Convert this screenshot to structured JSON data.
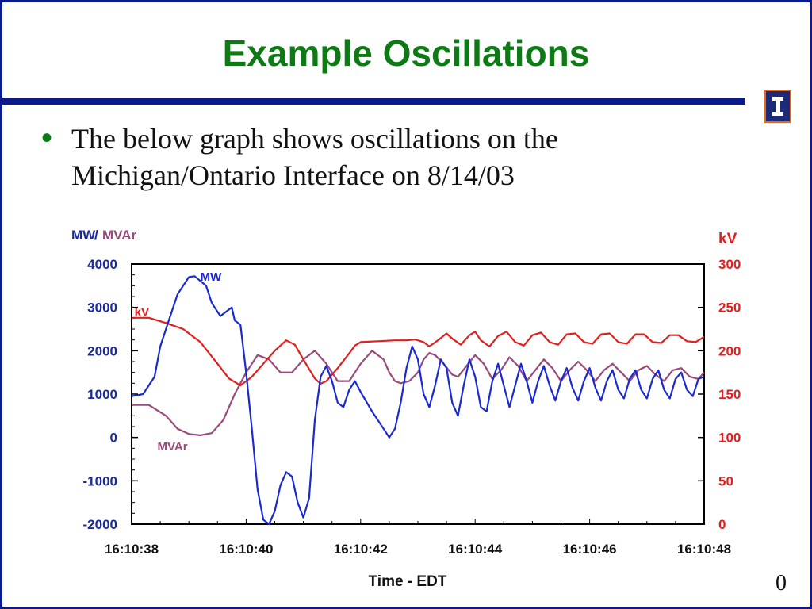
{
  "slide": {
    "title": "Example Oscillations",
    "bullet": "The below graph shows oscillations on the Michigan/Ontario Interface on 8/14/03",
    "page_number": "0",
    "colors": {
      "title": "#0e7a16",
      "rule": "#0a1a8c",
      "bullet": "#0e7a16"
    },
    "logo_icon": "university-block-i-icon"
  },
  "chart_data": {
    "type": "line",
    "xlabel": "Time - EDT",
    "x_ticks": [
      "16:10:38",
      "16:10:40",
      "16:10:42",
      "16:10:44",
      "16:10:46",
      "16:10:48"
    ],
    "xlim": [
      0,
      10
    ],
    "left_axis": {
      "label_mw": "MW",
      "label_sep": "/",
      "label_mvar": "MVAr",
      "ticks": [
        "4000",
        "3000",
        "2000",
        "1000",
        "0",
        "-1000",
        "-2000"
      ],
      "ylim": [
        -2000,
        4000
      ]
    },
    "right_axis": {
      "label": "kV",
      "ticks": [
        "300",
        "250",
        "200",
        "150",
        "100",
        "50",
        "0"
      ],
      "ylim": [
        0,
        300
      ]
    },
    "annotations": {
      "mw": "MW",
      "kv": "kV",
      "mvar": "MVAr"
    },
    "colors": {
      "mw": "#1a2ad0",
      "kv": "#e0201e",
      "mvar": "#9a4a7a",
      "axis_left": "#1a2a9a",
      "axis_right": "#e0201e",
      "mvar_label": "#9a4a7a"
    },
    "series": [
      {
        "name": "MW",
        "axis": "left",
        "points": [
          [
            0,
            950
          ],
          [
            0.2,
            1000
          ],
          [
            0.4,
            1400
          ],
          [
            0.5,
            2100
          ],
          [
            0.6,
            2500
          ],
          [
            0.8,
            3300
          ],
          [
            1.0,
            3700
          ],
          [
            1.1,
            3720
          ],
          [
            1.3,
            3500
          ],
          [
            1.4,
            3100
          ],
          [
            1.55,
            2800
          ],
          [
            1.65,
            2900
          ],
          [
            1.75,
            3000
          ],
          [
            1.8,
            2700
          ],
          [
            1.9,
            2600
          ],
          [
            2.0,
            1500
          ],
          [
            2.1,
            200
          ],
          [
            2.2,
            -1200
          ],
          [
            2.3,
            -1900
          ],
          [
            2.4,
            -2000
          ],
          [
            2.5,
            -1700
          ],
          [
            2.6,
            -1100
          ],
          [
            2.7,
            -800
          ],
          [
            2.8,
            -900
          ],
          [
            2.9,
            -1500
          ],
          [
            3.0,
            -1850
          ],
          [
            3.1,
            -1400
          ],
          [
            3.2,
            400
          ],
          [
            3.3,
            1400
          ],
          [
            3.4,
            1650
          ],
          [
            3.5,
            1300
          ],
          [
            3.6,
            800
          ],
          [
            3.7,
            700
          ],
          [
            3.8,
            1100
          ],
          [
            3.9,
            1300
          ],
          [
            4.0,
            1050
          ],
          [
            4.2,
            600
          ],
          [
            4.4,
            200
          ],
          [
            4.5,
            0
          ],
          [
            4.6,
            200
          ],
          [
            4.7,
            800
          ],
          [
            4.8,
            1600
          ],
          [
            4.9,
            2100
          ],
          [
            5.0,
            1800
          ],
          [
            5.1,
            1000
          ],
          [
            5.2,
            700
          ],
          [
            5.3,
            1200
          ],
          [
            5.4,
            1800
          ],
          [
            5.5,
            1600
          ],
          [
            5.6,
            800
          ],
          [
            5.7,
            500
          ],
          [
            5.8,
            1200
          ],
          [
            5.9,
            1800
          ],
          [
            6.0,
            1400
          ],
          [
            6.1,
            700
          ],
          [
            6.2,
            600
          ],
          [
            6.3,
            1300
          ],
          [
            6.4,
            1700
          ],
          [
            6.5,
            1200
          ],
          [
            6.6,
            700
          ],
          [
            6.7,
            1200
          ],
          [
            6.8,
            1700
          ],
          [
            6.9,
            1300
          ],
          [
            7.0,
            800
          ],
          [
            7.1,
            1300
          ],
          [
            7.2,
            1650
          ],
          [
            7.3,
            1200
          ],
          [
            7.4,
            850
          ],
          [
            7.5,
            1300
          ],
          [
            7.6,
            1600
          ],
          [
            7.7,
            1150
          ],
          [
            7.8,
            850
          ],
          [
            7.9,
            1300
          ],
          [
            8.0,
            1600
          ],
          [
            8.1,
            1150
          ],
          [
            8.2,
            850
          ],
          [
            8.3,
            1300
          ],
          [
            8.4,
            1550
          ],
          [
            8.5,
            1100
          ],
          [
            8.6,
            900
          ],
          [
            8.7,
            1350
          ],
          [
            8.8,
            1550
          ],
          [
            8.9,
            1100
          ],
          [
            9.0,
            900
          ],
          [
            9.1,
            1350
          ],
          [
            9.2,
            1550
          ],
          [
            9.3,
            1100
          ],
          [
            9.4,
            900
          ],
          [
            9.5,
            1350
          ],
          [
            9.6,
            1500
          ],
          [
            9.7,
            1100
          ],
          [
            9.8,
            950
          ],
          [
            9.9,
            1350
          ],
          [
            10.0,
            1400
          ]
        ]
      },
      {
        "name": "kV",
        "axis": "right",
        "points": [
          [
            0,
            238
          ],
          [
            0.3,
            238
          ],
          [
            0.6,
            232
          ],
          [
            0.9,
            225
          ],
          [
            1.2,
            210
          ],
          [
            1.5,
            185
          ],
          [
            1.7,
            168
          ],
          [
            1.9,
            160
          ],
          [
            2.1,
            170
          ],
          [
            2.3,
            185
          ],
          [
            2.5,
            200
          ],
          [
            2.7,
            212
          ],
          [
            2.85,
            207
          ],
          [
            3.0,
            190
          ],
          [
            3.2,
            168
          ],
          [
            3.3,
            162
          ],
          [
            3.4,
            165
          ],
          [
            3.6,
            180
          ],
          [
            3.8,
            197
          ],
          [
            3.9,
            206
          ],
          [
            4.0,
            210
          ],
          [
            4.3,
            211
          ],
          [
            4.6,
            212
          ],
          [
            4.8,
            212
          ],
          [
            4.95,
            213
          ],
          [
            5.1,
            210
          ],
          [
            5.2,
            205
          ],
          [
            5.35,
            212
          ],
          [
            5.5,
            220
          ],
          [
            5.6,
            214
          ],
          [
            5.75,
            207
          ],
          [
            5.9,
            218
          ],
          [
            6.0,
            222
          ],
          [
            6.1,
            212
          ],
          [
            6.25,
            205
          ],
          [
            6.4,
            217
          ],
          [
            6.55,
            222
          ],
          [
            6.7,
            210
          ],
          [
            6.85,
            206
          ],
          [
            7.0,
            218
          ],
          [
            7.15,
            221
          ],
          [
            7.3,
            210
          ],
          [
            7.45,
            207
          ],
          [
            7.6,
            219
          ],
          [
            7.75,
            220
          ],
          [
            7.9,
            210
          ],
          [
            8.05,
            208
          ],
          [
            8.2,
            219
          ],
          [
            8.35,
            220
          ],
          [
            8.5,
            210
          ],
          [
            8.65,
            208
          ],
          [
            8.8,
            219
          ],
          [
            8.95,
            219
          ],
          [
            9.1,
            210
          ],
          [
            9.25,
            209
          ],
          [
            9.4,
            218
          ],
          [
            9.55,
            218
          ],
          [
            9.7,
            211
          ],
          [
            9.85,
            210
          ],
          [
            10.0,
            216
          ]
        ]
      },
      {
        "name": "MVAr",
        "axis": "left",
        "points": [
          [
            0,
            750
          ],
          [
            0.3,
            750
          ],
          [
            0.6,
            500
          ],
          [
            0.8,
            200
          ],
          [
            1.0,
            80
          ],
          [
            1.2,
            50
          ],
          [
            1.4,
            100
          ],
          [
            1.6,
            400
          ],
          [
            1.8,
            1000
          ],
          [
            2.0,
            1500
          ],
          [
            2.2,
            1900
          ],
          [
            2.4,
            1800
          ],
          [
            2.6,
            1500
          ],
          [
            2.8,
            1500
          ],
          [
            3.0,
            1800
          ],
          [
            3.2,
            2000
          ],
          [
            3.4,
            1700
          ],
          [
            3.6,
            1300
          ],
          [
            3.8,
            1300
          ],
          [
            4.0,
            1700
          ],
          [
            4.2,
            2000
          ],
          [
            4.4,
            1800
          ],
          [
            4.5,
            1500
          ],
          [
            4.6,
            1300
          ],
          [
            4.7,
            1250
          ],
          [
            4.85,
            1300
          ],
          [
            5.0,
            1500
          ],
          [
            5.1,
            1800
          ],
          [
            5.2,
            1950
          ],
          [
            5.3,
            1900
          ],
          [
            5.45,
            1700
          ],
          [
            5.6,
            1450
          ],
          [
            5.7,
            1400
          ],
          [
            5.85,
            1650
          ],
          [
            6.0,
            1900
          ],
          [
            6.15,
            1700
          ],
          [
            6.3,
            1350
          ],
          [
            6.45,
            1550
          ],
          [
            6.6,
            1850
          ],
          [
            6.75,
            1650
          ],
          [
            6.9,
            1300
          ],
          [
            7.05,
            1550
          ],
          [
            7.2,
            1800
          ],
          [
            7.35,
            1600
          ],
          [
            7.5,
            1300
          ],
          [
            7.65,
            1550
          ],
          [
            7.8,
            1750
          ],
          [
            7.95,
            1550
          ],
          [
            8.1,
            1300
          ],
          [
            8.25,
            1550
          ],
          [
            8.4,
            1700
          ],
          [
            8.55,
            1500
          ],
          [
            8.7,
            1300
          ],
          [
            8.85,
            1550
          ],
          [
            9.0,
            1650
          ],
          [
            9.15,
            1450
          ],
          [
            9.3,
            1300
          ],
          [
            9.45,
            1550
          ],
          [
            9.6,
            1600
          ],
          [
            9.75,
            1400
          ],
          [
            9.9,
            1350
          ],
          [
            10.0,
            1500
          ]
        ]
      }
    ]
  }
}
